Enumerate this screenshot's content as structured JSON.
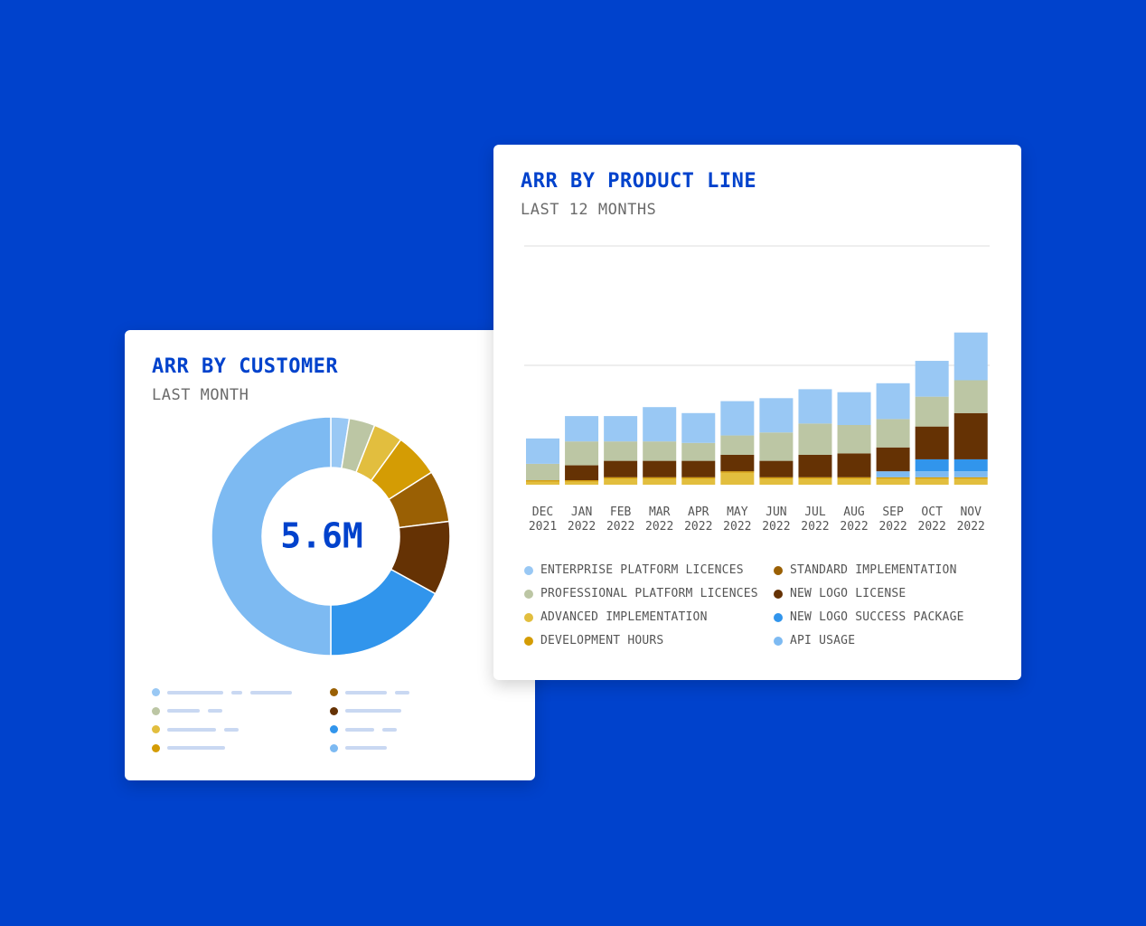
{
  "customer_card": {
    "title": "ARR BY CUSTOMER",
    "subtitle": "LAST MONTH",
    "center_value": "5.6M"
  },
  "product_card": {
    "title": "ARR BY PRODUCT LINE",
    "subtitle": "LAST 12 MONTHS"
  },
  "colors": {
    "background": "#0042CC",
    "accent": "#0042CC",
    "placeholder_line": "#c9d8f2"
  },
  "chart_data": [
    {
      "type": "pie",
      "variant": "donut",
      "title": "ARR BY CUSTOMER",
      "subtitle": "LAST MONTH",
      "center_label": "5.6M",
      "slices": [
        {
          "value": 2.5,
          "color": "#99C8F4"
        },
        {
          "value": 3.5,
          "color": "#BCC6A4"
        },
        {
          "value": 4.0,
          "color": "#E2BE3E"
        },
        {
          "value": 6.0,
          "color": "#D49C04"
        },
        {
          "value": 7.0,
          "color": "#9A6004"
        },
        {
          "value": 10.0,
          "color": "#653204"
        },
        {
          "value": 17.0,
          "color": "#3195EC"
        },
        {
          "value": 50.0,
          "color": "#7DBAF2"
        }
      ],
      "legend_placement": "bottom",
      "legend_placeholder_rows": [
        {
          "color": "#99C8F4",
          "bars": [
            62,
            12,
            46
          ]
        },
        {
          "color": "#BCC6A4",
          "bars": [
            36,
            16
          ]
        },
        {
          "color": "#E2BE3E",
          "bars": [
            54,
            16
          ]
        },
        {
          "color": "#D49C04",
          "bars": [
            64
          ]
        },
        {
          "color": "#9A6004",
          "bars": [
            46,
            16
          ]
        },
        {
          "color": "#653204",
          "bars": [
            62
          ]
        },
        {
          "color": "#3195EC",
          "bars": [
            32,
            16
          ]
        },
        {
          "color": "#7DBAF2",
          "bars": [
            46
          ]
        }
      ]
    },
    {
      "type": "bar",
      "stacked": true,
      "title": "ARR BY PRODUCT LINE",
      "subtitle": "LAST 12 MONTHS",
      "categories": [
        [
          "DEC",
          "2021"
        ],
        [
          "JAN",
          "2022"
        ],
        [
          "FEB",
          "2022"
        ],
        [
          "MAR",
          "2022"
        ],
        [
          "APR",
          "2022"
        ],
        [
          "MAY",
          "2022"
        ],
        [
          "JUN",
          "2022"
        ],
        [
          "JUL",
          "2022"
        ],
        [
          "AUG",
          "2022"
        ],
        [
          "SEP",
          "2022"
        ],
        [
          "OCT",
          "2022"
        ],
        [
          "NOV",
          "2022"
        ]
      ],
      "ylim": [
        0,
        8
      ],
      "gridlines": [
        4,
        8
      ],
      "grid": true,
      "legend_placement": "bottom",
      "series": [
        {
          "name": "ADVANCED IMPLEMENTATION",
          "color": "#E2BE3E",
          "values": [
            0.1,
            0.1,
            0.2,
            0.2,
            0.2,
            0.4,
            0.2,
            0.2,
            0.2,
            0.2,
            0.2,
            0.2
          ]
        },
        {
          "name": "DEVELOPMENT HOURS",
          "color": "#D49C04",
          "values": [
            0.05,
            0.05,
            0.05,
            0.05,
            0.05,
            0.05,
            0.05,
            0.05,
            0.05,
            0.05,
            0.05,
            0.05
          ]
        },
        {
          "name": "API USAGE",
          "color": "#7DBAF2",
          "values": [
            0,
            0,
            0,
            0,
            0,
            0,
            0,
            0,
            0,
            0.2,
            0.2,
            0.2
          ]
        },
        {
          "name": "NEW LOGO SUCCESS PACKAGE",
          "color": "#3195EC",
          "values": [
            0,
            0,
            0,
            0,
            0,
            0,
            0,
            0,
            0,
            0,
            0.4,
            0.4
          ]
        },
        {
          "name": "NEW LOGO LICENSE",
          "color": "#653204",
          "values": [
            0,
            0.5,
            0.55,
            0.55,
            0.55,
            0.55,
            0.55,
            0.75,
            0.8,
            0.8,
            1.1,
            1.55
          ]
        },
        {
          "name": "STANDARD IMPLEMENTATION",
          "color": "#9A6004",
          "values": [
            0,
            0,
            0,
            0,
            0,
            0,
            0,
            0,
            0,
            0,
            0,
            0
          ]
        },
        {
          "name": "PROFESSIONAL PLATFORM LICENCES",
          "color": "#BCC6A4",
          "values": [
            0.55,
            0.8,
            0.65,
            0.65,
            0.6,
            0.65,
            0.95,
            1.05,
            0.95,
            0.95,
            1.0,
            1.1
          ]
        },
        {
          "name": "ENTERPRISE PLATFORM LICENCES",
          "color": "#99C8F4",
          "values": [
            0.85,
            0.85,
            0.85,
            1.15,
            1.0,
            1.15,
            1.15,
            1.15,
            1.1,
            1.2,
            1.2,
            1.6
          ]
        }
      ],
      "legend": [
        {
          "label": "ENTERPRISE PLATFORM LICENCES",
          "color": "#99C8F4"
        },
        {
          "label": "STANDARD IMPLEMENTATION",
          "color": "#9A6004"
        },
        {
          "label": "PROFESSIONAL PLATFORM LICENCES",
          "color": "#BCC6A4"
        },
        {
          "label": "NEW LOGO LICENSE",
          "color": "#653204"
        },
        {
          "label": "ADVANCED IMPLEMENTATION",
          "color": "#E2BE3E"
        },
        {
          "label": "NEW LOGO SUCCESS PACKAGE",
          "color": "#3195EC"
        },
        {
          "label": "DEVELOPMENT HOURS",
          "color": "#D49C04"
        },
        {
          "label": "API USAGE",
          "color": "#7DBAF2"
        }
      ]
    }
  ]
}
